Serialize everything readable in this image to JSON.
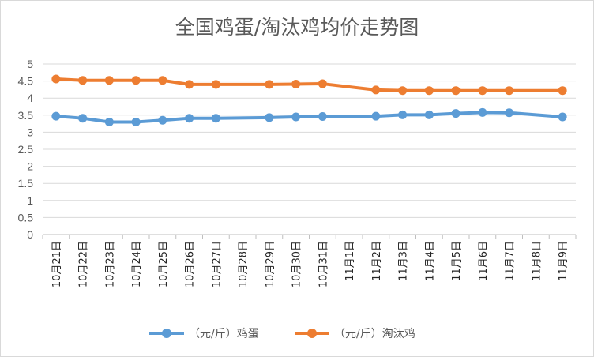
{
  "chart_data": {
    "type": "line",
    "title": "全国鸡蛋/淘汰鸡均价走势图",
    "xlabel": "",
    "ylabel": "",
    "ylim": [
      0,
      5
    ],
    "yticks": [
      "0",
      "0.5",
      "1",
      "1.5",
      "2",
      "2.5",
      "3",
      "3.5",
      "4",
      "4.5",
      "5"
    ],
    "categories": [
      "10月21日",
      "10月22日",
      "10月23日",
      "10月24日",
      "10月25日",
      "10月26日",
      "10月27日",
      "10月28日",
      "10月29日",
      "10月30日",
      "10月31日",
      "11月1日",
      "11月2日",
      "11月3日",
      "11月4日",
      "11月5日",
      "11月6日",
      "11月7日",
      "11月8日",
      "11月9日"
    ],
    "grid": true,
    "legend_position": "bottom",
    "series": [
      {
        "name": "（元/斤）鸡蛋",
        "color": "#5b9bd5",
        "values": [
          3.47,
          3.41,
          3.3,
          3.3,
          3.35,
          3.41,
          3.41,
          null,
          3.43,
          3.45,
          3.46,
          null,
          3.47,
          3.51,
          3.51,
          3.55,
          3.58,
          3.57,
          null,
          3.45
        ]
      },
      {
        "name": "（元/斤）淘汰鸡",
        "color": "#ed7d31",
        "values": [
          4.56,
          4.52,
          4.52,
          4.52,
          4.52,
          4.4,
          4.4,
          null,
          4.4,
          4.41,
          4.42,
          null,
          4.24,
          4.22,
          4.22,
          4.22,
          4.22,
          4.22,
          null,
          4.22
        ]
      }
    ]
  }
}
